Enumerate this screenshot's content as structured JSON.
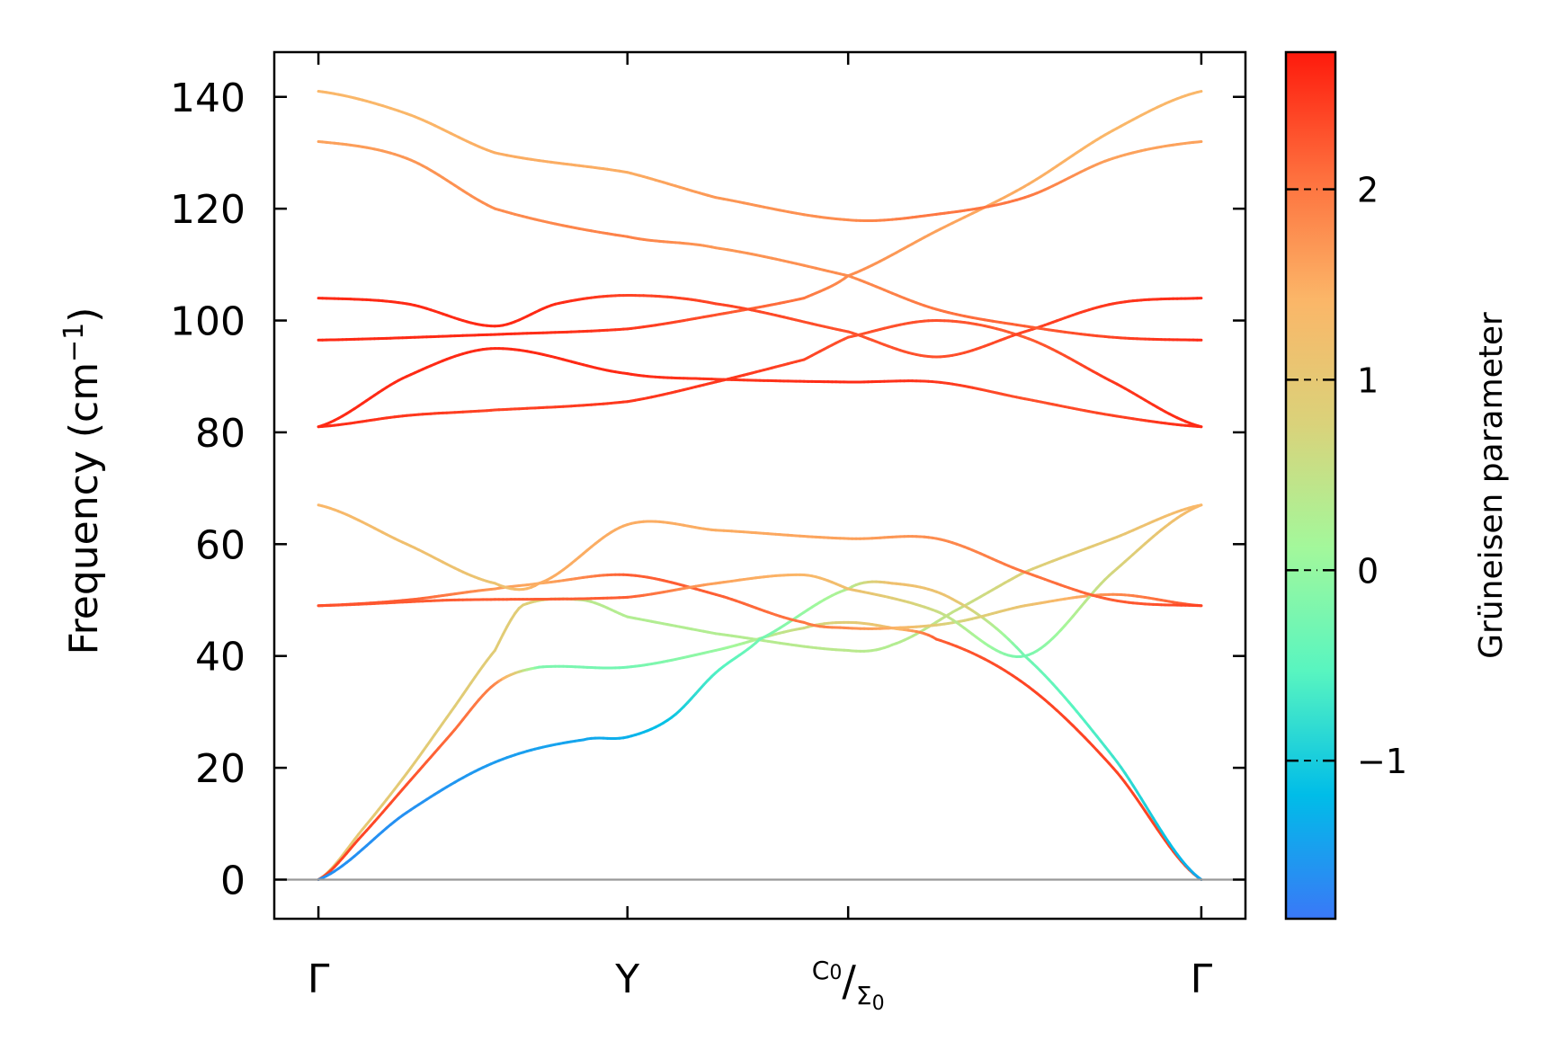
{
  "chart_data": {
    "type": "line",
    "title": "",
    "ylabel": "Frequency (cm",
    "ylabel_sup": "−1",
    "ylabel_close": ")",
    "xlabel": "",
    "ylim": [
      -7,
      148
    ],
    "yticks": [
      0,
      20,
      40,
      60,
      80,
      100,
      120,
      140
    ],
    "ytick_labels": [
      "0",
      "20",
      "40",
      "60",
      "80",
      "100",
      "120",
      "140"
    ],
    "xlim": [
      -0.05,
      1.05
    ],
    "kpoints": [
      {
        "pos": 0,
        "label": "Γ"
      },
      {
        "pos": 0.35,
        "label": "Y"
      },
      {
        "pos": 0.6,
        "label": "C",
        "sub": "0",
        "sep": "/",
        "label2": "Σ",
        "sub2": "0"
      },
      {
        "pos": 1,
        "label": "Γ"
      }
    ],
    "zero_line": 0,
    "series": [
      {
        "name": "band-1",
        "points": [
          [
            0,
            0,
            1.0
          ],
          [
            0.05,
            9,
            1.0
          ],
          [
            0.1,
            19,
            0.95
          ],
          [
            0.15,
            30,
            0.9
          ],
          [
            0.2,
            41,
            0.9
          ],
          [
            0.23,
            49,
            0.9
          ],
          [
            0.3,
            50,
            0.4
          ],
          [
            0.35,
            47,
            0.3
          ],
          [
            0.45,
            44,
            0.3
          ],
          [
            0.6,
            41,
            0.4
          ],
          [
            0.65,
            42,
            0.3
          ],
          [
            0.72,
            48,
            0.5
          ],
          [
            0.8,
            55,
            0.8
          ],
          [
            0.9,
            61,
            1.0
          ],
          [
            1,
            67,
            1.4
          ]
        ]
      },
      {
        "name": "band-2",
        "points": [
          [
            0,
            0,
            2.4
          ],
          [
            0.05,
            8,
            2.4
          ],
          [
            0.1,
            17,
            2.3
          ],
          [
            0.15,
            26,
            2.1
          ],
          [
            0.2,
            35,
            1.9
          ],
          [
            0.25,
            38,
            -0.2
          ],
          [
            0.35,
            38,
            -0.3
          ],
          [
            0.45,
            41,
            0.0
          ],
          [
            0.55,
            45,
            0.6
          ],
          [
            0.6,
            46,
            0.9
          ],
          [
            0.65,
            45,
            1.2
          ],
          [
            0.7,
            43,
            2.2
          ],
          [
            0.8,
            35,
            2.4
          ],
          [
            0.9,
            20,
            2.4
          ],
          [
            1,
            0,
            2.4
          ]
        ]
      },
      {
        "name": "band-3",
        "points": [
          [
            0,
            0,
            -1.6
          ],
          [
            0.1,
            12,
            -1.6
          ],
          [
            0.2,
            21,
            -1.5
          ],
          [
            0.3,
            25,
            -1.4
          ],
          [
            0.35,
            25.5,
            -1.3
          ],
          [
            0.4,
            29,
            -1.1
          ],
          [
            0.45,
            37,
            -0.6
          ],
          [
            0.5,
            43,
            -0.3
          ],
          [
            0.6,
            52,
            0.3
          ],
          [
            0.65,
            53,
            1.2
          ],
          [
            0.72,
            50,
            1.1
          ],
          [
            0.8,
            40,
            -0.3
          ],
          [
            0.9,
            22,
            -0.7
          ],
          [
            1,
            0,
            -1.4
          ]
        ]
      },
      {
        "name": "band-4",
        "points": [
          [
            0,
            49,
            2.4
          ],
          [
            0.1,
            50,
            2.2
          ],
          [
            0.2,
            52,
            1.7
          ],
          [
            0.25,
            53,
            1.5
          ],
          [
            0.35,
            54.5,
            2.2
          ],
          [
            0.45,
            51,
            2.2
          ],
          [
            0.55,
            46,
            2.0
          ],
          [
            0.6,
            45,
            1.8
          ],
          [
            0.65,
            45,
            1.5
          ],
          [
            0.72,
            46,
            0.7
          ],
          [
            0.8,
            49,
            1.1
          ],
          [
            0.9,
            51,
            1.8
          ],
          [
            1,
            49,
            2.3
          ]
        ]
      },
      {
        "name": "band-5",
        "points": [
          [
            0,
            49,
            2.3
          ],
          [
            0.15,
            50,
            2.2
          ],
          [
            0.35,
            50.5,
            2.2
          ],
          [
            0.45,
            53,
            1.6
          ],
          [
            0.55,
            54.5,
            1.4
          ],
          [
            0.6,
            52,
            1.2
          ],
          [
            0.7,
            48,
            0.6
          ],
          [
            0.8,
            40,
            -0.3
          ],
          [
            0.9,
            55,
            0.7
          ],
          [
            1,
            67,
            1.4
          ]
        ]
      },
      {
        "name": "band-6",
        "points": [
          [
            0,
            67,
            1.4
          ],
          [
            0.1,
            60,
            1.2
          ],
          [
            0.2,
            53,
            1.1
          ],
          [
            0.25,
            53,
            1.5
          ],
          [
            0.35,
            63.5,
            1.5
          ],
          [
            0.45,
            62.5,
            1.5
          ],
          [
            0.6,
            61,
            1.6
          ],
          [
            0.7,
            61,
            1.8
          ],
          [
            0.8,
            55,
            2.0
          ],
          [
            0.9,
            50,
            2.2
          ],
          [
            1,
            49,
            2.4
          ]
        ]
      },
      {
        "name": "band-7",
        "points": [
          [
            0,
            81,
            2.6
          ],
          [
            0.1,
            83,
            2.5
          ],
          [
            0.2,
            84,
            2.4
          ],
          [
            0.35,
            85.5,
            2.5
          ],
          [
            0.45,
            89,
            2.5
          ],
          [
            0.55,
            93,
            2.4
          ],
          [
            0.6,
            97,
            2.3
          ],
          [
            0.7,
            100,
            2.3
          ],
          [
            0.8,
            97,
            2.2
          ],
          [
            0.9,
            89,
            2.5
          ],
          [
            1,
            81,
            2.6
          ]
        ]
      },
      {
        "name": "band-8",
        "points": [
          [
            0,
            81,
            2.6
          ],
          [
            0.1,
            90,
            2.6
          ],
          [
            0.2,
            95,
            2.6
          ],
          [
            0.35,
            90.5,
            2.6
          ],
          [
            0.45,
            89.5,
            2.5
          ],
          [
            0.6,
            89,
            2.6
          ],
          [
            0.7,
            89,
            2.5
          ],
          [
            0.8,
            86,
            2.3
          ],
          [
            0.9,
            83,
            2.4
          ],
          [
            1,
            81,
            2.6
          ]
        ]
      },
      {
        "name": "band-9",
        "points": [
          [
            0,
            96.5,
            2.6
          ],
          [
            0.2,
            97.5,
            2.6
          ],
          [
            0.35,
            98.5,
            2.5
          ],
          [
            0.45,
            101,
            2.3
          ],
          [
            0.55,
            104,
            2.0
          ],
          [
            0.6,
            108,
            1.8
          ],
          [
            0.7,
            116,
            1.6
          ],
          [
            0.8,
            124,
            1.5
          ],
          [
            0.9,
            134,
            1.4
          ],
          [
            1,
            141,
            1.4
          ]
        ]
      },
      {
        "name": "band-10",
        "points": [
          [
            0,
            104,
            2.6
          ],
          [
            0.1,
            103,
            2.6
          ],
          [
            0.2,
            99,
            2.6
          ],
          [
            0.27,
            103,
            2.6
          ],
          [
            0.35,
            104.5,
            2.4
          ],
          [
            0.45,
            103,
            2.4
          ],
          [
            0.6,
            98,
            2.3
          ],
          [
            0.7,
            93.5,
            2.3
          ],
          [
            0.8,
            98,
            2.4
          ],
          [
            0.9,
            103,
            2.5
          ],
          [
            1,
            104,
            2.6
          ]
        ]
      },
      {
        "name": "band-11",
        "points": [
          [
            0,
            132,
            1.6
          ],
          [
            0.1,
            129,
            1.7
          ],
          [
            0.2,
            120,
            1.8
          ],
          [
            0.35,
            115,
            1.9
          ],
          [
            0.45,
            113,
            1.7
          ],
          [
            0.6,
            108,
            1.8
          ],
          [
            0.7,
            102,
            2.0
          ],
          [
            0.8,
            99,
            2.2
          ],
          [
            0.9,
            97,
            2.4
          ],
          [
            1,
            96.5,
            2.6
          ]
        ]
      },
      {
        "name": "band-12",
        "points": [
          [
            0,
            141,
            1.4
          ],
          [
            0.1,
            137,
            1.4
          ],
          [
            0.2,
            130,
            1.5
          ],
          [
            0.35,
            126.5,
            1.5
          ],
          [
            0.45,
            122,
            1.7
          ],
          [
            0.6,
            118,
            1.8
          ],
          [
            0.7,
            119,
            2.0
          ],
          [
            0.8,
            122,
            2.0
          ],
          [
            0.9,
            129,
            1.6
          ],
          [
            1,
            132,
            1.6
          ]
        ]
      }
    ],
    "colorbar": {
      "title": "Grüneisen parameter",
      "range": [
        -1.83,
        2.72
      ],
      "ticks": [
        2,
        1,
        0,
        -1
      ],
      "tick_labels": [
        "2",
        "1",
        "0",
        "−1"
      ],
      "stops": [
        "#3a78f7",
        "#00bde8",
        "#58f5c0",
        "#a3f89b",
        "#dad27a",
        "#fbb668",
        "#fe6f3d",
        "#fe1a0c"
      ]
    }
  }
}
